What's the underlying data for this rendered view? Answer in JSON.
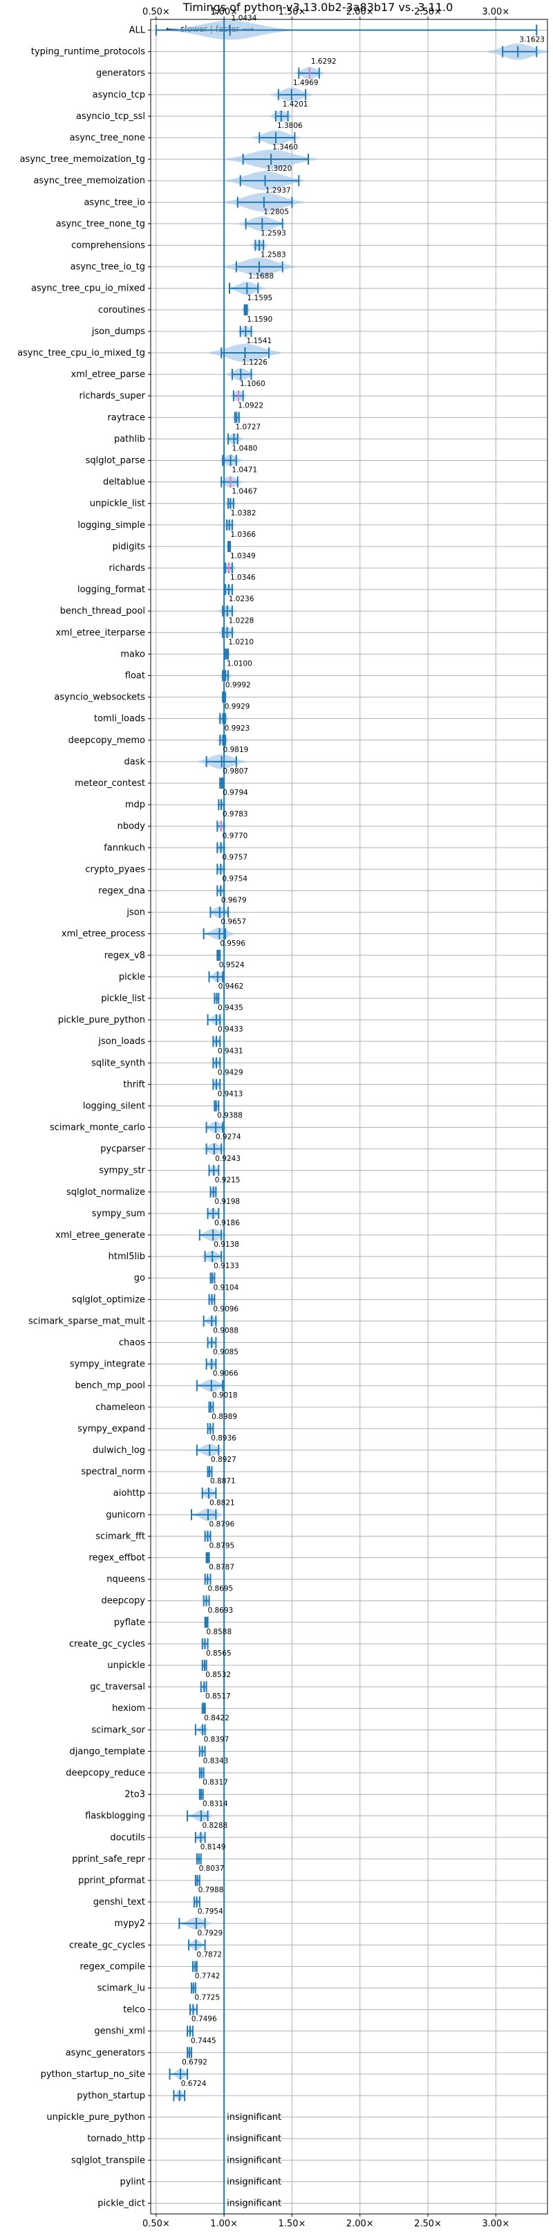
{
  "chart_data": {
    "type": "violin",
    "title": "Timings of python-v3.13.0b2-3a83b17 vs. 3.11.0",
    "direction_note": "⟵ slower | faster ⟶",
    "x_ticks": [
      "0.50×",
      "1.00×",
      "1.50×",
      "2.00×",
      "2.50×",
      "3.00×"
    ],
    "x_tick_values": [
      0.5,
      1.0,
      1.5,
      2.0,
      2.5,
      3.0
    ],
    "xlim": [
      0.46,
      3.38
    ],
    "grid": true,
    "reference_line": 1.0,
    "benchmarks": [
      {
        "name": "ALL",
        "value": "1.0434",
        "center": 1.0434,
        "low": 0.5,
        "high": 3.3,
        "spread": 0.2
      },
      {
        "name": "typing_runtime_protocols",
        "value": "3.1623",
        "center": 3.1623,
        "low": 3.05,
        "high": 3.3,
        "spread": 0.1
      },
      {
        "name": "generators",
        "value": "1.6292",
        "center": 1.6292,
        "low": 1.55,
        "high": 1.7,
        "spread": 0.05,
        "median_mark": true
      },
      {
        "name": "asyncio_tcp",
        "value": "1.4969",
        "center": 1.4969,
        "low": 1.4,
        "high": 1.6,
        "spread": 0.07
      },
      {
        "name": "asyncio_tcp_ssl",
        "value": "1.4201",
        "center": 1.4201,
        "low": 1.38,
        "high": 1.47,
        "spread": 0.04
      },
      {
        "name": "async_tree_none",
        "value": "1.3806",
        "center": 1.3806,
        "low": 1.26,
        "high": 1.52,
        "spread": 0.08
      },
      {
        "name": "async_tree_memoization_tg",
        "value": "1.3460",
        "center": 1.346,
        "low": 1.14,
        "high": 1.62,
        "spread": 0.15
      },
      {
        "name": "async_tree_memoization",
        "value": "1.3020",
        "center": 1.302,
        "low": 1.12,
        "high": 1.55,
        "spread": 0.13
      },
      {
        "name": "async_tree_io",
        "value": "1.2937",
        "center": 1.2937,
        "low": 1.1,
        "high": 1.5,
        "spread": 0.13
      },
      {
        "name": "async_tree_none_tg",
        "value": "1.2805",
        "center": 1.2805,
        "low": 1.16,
        "high": 1.43,
        "spread": 0.08
      },
      {
        "name": "comprehensions",
        "value": "1.2593",
        "center": 1.2593,
        "low": 1.23,
        "high": 1.29,
        "spread": 0.03
      },
      {
        "name": "async_tree_io_tg",
        "value": "1.2583",
        "center": 1.2583,
        "low": 1.09,
        "high": 1.43,
        "spread": 0.12
      },
      {
        "name": "async_tree_cpu_io_mixed",
        "value": "1.1688",
        "center": 1.1688,
        "low": 1.04,
        "high": 1.25,
        "spread": 0.06
      },
      {
        "name": "coroutines",
        "value": "1.1595",
        "center": 1.1595,
        "low": 1.15,
        "high": 1.17,
        "spread": 0.015
      },
      {
        "name": "json_dumps",
        "value": "1.1590",
        "center": 1.159,
        "low": 1.12,
        "high": 1.2,
        "spread": 0.03
      },
      {
        "name": "async_tree_cpu_io_mixed_tg",
        "value": "1.1541",
        "center": 1.1541,
        "low": 0.98,
        "high": 1.33,
        "spread": 0.12
      },
      {
        "name": "xml_etree_parse",
        "value": "1.1226",
        "center": 1.1226,
        "low": 1.06,
        "high": 1.2,
        "spread": 0.05
      },
      {
        "name": "richards_super",
        "value": "1.1060",
        "center": 1.106,
        "low": 1.07,
        "high": 1.14,
        "spread": 0.03,
        "median_mark": true
      },
      {
        "name": "raytrace",
        "value": "1.0922",
        "center": 1.0922,
        "low": 1.08,
        "high": 1.11,
        "spread": 0.015
      },
      {
        "name": "pathlib",
        "value": "1.0727",
        "center": 1.0727,
        "low": 1.03,
        "high": 1.1,
        "spread": 0.03
      },
      {
        "name": "sqlglot_parse",
        "value": "1.0480",
        "center": 1.048,
        "low": 0.99,
        "high": 1.09,
        "spread": 0.04
      },
      {
        "name": "deltablue",
        "value": "1.0471",
        "center": 1.0471,
        "low": 0.98,
        "high": 1.1,
        "spread": 0.04,
        "median_mark": true
      },
      {
        "name": "unpickle_list",
        "value": "1.0467",
        "center": 1.0467,
        "low": 1.03,
        "high": 1.07,
        "spread": 0.02
      },
      {
        "name": "logging_simple",
        "value": "1.0382",
        "center": 1.0382,
        "low": 1.02,
        "high": 1.06,
        "spread": 0.02
      },
      {
        "name": "pidigits",
        "value": "1.0366",
        "center": 1.0366,
        "low": 1.03,
        "high": 1.045,
        "spread": 0.01
      },
      {
        "name": "richards",
        "value": "1.0349",
        "center": 1.0349,
        "low": 1.01,
        "high": 1.06,
        "spread": 0.025,
        "median_mark": true
      },
      {
        "name": "logging_format",
        "value": "1.0346",
        "center": 1.0346,
        "low": 1.01,
        "high": 1.06,
        "spread": 0.02
      },
      {
        "name": "bench_thread_pool",
        "value": "1.0236",
        "center": 1.0236,
        "low": 0.99,
        "high": 1.06,
        "spread": 0.03
      },
      {
        "name": "xml_etree_iterparse",
        "value": "1.0228",
        "center": 1.0228,
        "low": 0.99,
        "high": 1.06,
        "spread": 0.03
      },
      {
        "name": "mako",
        "value": "1.0210",
        "center": 1.021,
        "low": 1.01,
        "high": 1.03,
        "spread": 0.012
      },
      {
        "name": "float",
        "value": "1.0100",
        "center": 1.01,
        "low": 0.99,
        "high": 1.03,
        "spread": 0.02
      },
      {
        "name": "asyncio_websockets",
        "value": "0.9992",
        "center": 0.9992,
        "low": 0.99,
        "high": 1.01,
        "spread": 0.01
      },
      {
        "name": "tomli_loads",
        "value": "0.9929",
        "center": 0.9929,
        "low": 0.97,
        "high": 1.01,
        "spread": 0.02
      },
      {
        "name": "deepcopy_memo",
        "value": "0.9923",
        "center": 0.9923,
        "low": 0.97,
        "high": 1.01,
        "spread": 0.02
      },
      {
        "name": "dask",
        "value": "0.9819",
        "center": 0.9819,
        "low": 0.87,
        "high": 1.09,
        "spread": 0.08
      },
      {
        "name": "meteor_contest",
        "value": "0.9807",
        "center": 0.9807,
        "low": 0.97,
        "high": 0.99,
        "spread": 0.01
      },
      {
        "name": "mdp",
        "value": "0.9794",
        "center": 0.9794,
        "low": 0.96,
        "high": 1.0,
        "spread": 0.015
      },
      {
        "name": "nbody",
        "value": "0.9783",
        "center": 0.9783,
        "low": 0.95,
        "high": 1.0,
        "spread": 0.02,
        "median_mark": true
      },
      {
        "name": "fannkuch",
        "value": "0.9770",
        "center": 0.977,
        "low": 0.95,
        "high": 1.0,
        "spread": 0.02
      },
      {
        "name": "crypto_pyaes",
        "value": "0.9757",
        "center": 0.9757,
        "low": 0.95,
        "high": 1.0,
        "spread": 0.02
      },
      {
        "name": "regex_dna",
        "value": "0.9754",
        "center": 0.9754,
        "low": 0.95,
        "high": 1.0,
        "spread": 0.015
      },
      {
        "name": "json",
        "value": "0.9679",
        "center": 0.9679,
        "low": 0.9,
        "high": 1.03,
        "spread": 0.04
      },
      {
        "name": "xml_etree_process",
        "value": "0.9657",
        "center": 0.9657,
        "low": 0.85,
        "high": 1.01,
        "spread": 0.05
      },
      {
        "name": "regex_v8",
        "value": "0.9596",
        "center": 0.9596,
        "low": 0.95,
        "high": 0.97,
        "spread": 0.01
      },
      {
        "name": "pickle",
        "value": "0.9524",
        "center": 0.9524,
        "low": 0.89,
        "high": 0.99,
        "spread": 0.03
      },
      {
        "name": "pickle_list",
        "value": "0.9462",
        "center": 0.9462,
        "low": 0.93,
        "high": 0.96,
        "spread": 0.012
      },
      {
        "name": "pickle_pure_python",
        "value": "0.9435",
        "center": 0.9435,
        "low": 0.88,
        "high": 0.97,
        "spread": 0.03
      },
      {
        "name": "json_loads",
        "value": "0.9433",
        "center": 0.9433,
        "low": 0.92,
        "high": 0.97,
        "spread": 0.015
      },
      {
        "name": "sqlite_synth",
        "value": "0.9431",
        "center": 0.9431,
        "low": 0.92,
        "high": 0.97,
        "spread": 0.015
      },
      {
        "name": "thrift",
        "value": "0.9429",
        "center": 0.9429,
        "low": 0.92,
        "high": 0.97,
        "spread": 0.015
      },
      {
        "name": "logging_silent",
        "value": "0.9413",
        "center": 0.9413,
        "low": 0.93,
        "high": 0.96,
        "spread": 0.012
      },
      {
        "name": "scimark_monte_carlo",
        "value": "0.9388",
        "center": 0.9388,
        "low": 0.87,
        "high": 0.99,
        "spread": 0.04
      },
      {
        "name": "pycparser",
        "value": "0.9274",
        "center": 0.9274,
        "low": 0.87,
        "high": 0.98,
        "spread": 0.04
      },
      {
        "name": "sympy_str",
        "value": "0.9243",
        "center": 0.9243,
        "low": 0.89,
        "high": 0.96,
        "spread": 0.02
      },
      {
        "name": "sqlglot_normalize",
        "value": "0.9215",
        "center": 0.9215,
        "low": 0.9,
        "high": 0.94,
        "spread": 0.015
      },
      {
        "name": "sympy_sum",
        "value": "0.9198",
        "center": 0.9198,
        "low": 0.88,
        "high": 0.96,
        "spread": 0.025
      },
      {
        "name": "xml_etree_generate",
        "value": "0.9186",
        "center": 0.9186,
        "low": 0.82,
        "high": 0.98,
        "spread": 0.05
      },
      {
        "name": "html5lib",
        "value": "0.9138",
        "center": 0.9138,
        "low": 0.86,
        "high": 0.98,
        "spread": 0.04
      },
      {
        "name": "go",
        "value": "0.9133",
        "center": 0.9133,
        "low": 0.9,
        "high": 0.93,
        "spread": 0.012
      },
      {
        "name": "sqlglot_optimize",
        "value": "0.9104",
        "center": 0.9104,
        "low": 0.89,
        "high": 0.93,
        "spread": 0.012
      },
      {
        "name": "scimark_sparse_mat_mult",
        "value": "0.9096",
        "center": 0.9096,
        "low": 0.85,
        "high": 0.94,
        "spread": 0.025
      },
      {
        "name": "chaos",
        "value": "0.9088",
        "center": 0.9088,
        "low": 0.88,
        "high": 0.94,
        "spread": 0.015
      },
      {
        "name": "sympy_integrate",
        "value": "0.9085",
        "center": 0.9085,
        "low": 0.87,
        "high": 0.94,
        "spread": 0.02
      },
      {
        "name": "bench_mp_pool",
        "value": "0.9066",
        "center": 0.9066,
        "low": 0.8,
        "high": 0.99,
        "spread": 0.05
      },
      {
        "name": "chameleon",
        "value": "0.9018",
        "center": 0.9018,
        "low": 0.89,
        "high": 0.92,
        "spread": 0.01
      },
      {
        "name": "sympy_expand",
        "value": "0.8989",
        "center": 0.8989,
        "low": 0.88,
        "high": 0.92,
        "spread": 0.012
      },
      {
        "name": "dulwich_log",
        "value": "0.8936",
        "center": 0.8936,
        "low": 0.8,
        "high": 0.96,
        "spread": 0.05
      },
      {
        "name": "spectral_norm",
        "value": "0.8927",
        "center": 0.8927,
        "low": 0.88,
        "high": 0.91,
        "spread": 0.01
      },
      {
        "name": "aiohttp",
        "value": "0.8871",
        "center": 0.8871,
        "low": 0.84,
        "high": 0.94,
        "spread": 0.03
      },
      {
        "name": "gunicorn",
        "value": "0.8821",
        "center": 0.8821,
        "low": 0.76,
        "high": 0.94,
        "spread": 0.05
      },
      {
        "name": "scimark_fft",
        "value": "0.8796",
        "center": 0.8796,
        "low": 0.86,
        "high": 0.9,
        "spread": 0.012
      },
      {
        "name": "regex_effbot",
        "value": "0.8795",
        "center": 0.8795,
        "low": 0.87,
        "high": 0.89,
        "spread": 0.008
      },
      {
        "name": "nqueens",
        "value": "0.8787",
        "center": 0.8787,
        "low": 0.86,
        "high": 0.9,
        "spread": 0.01
      },
      {
        "name": "deepcopy",
        "value": "0.8695",
        "center": 0.8695,
        "low": 0.85,
        "high": 0.89,
        "spread": 0.01
      },
      {
        "name": "pyflate",
        "value": "0.8693",
        "center": 0.8693,
        "low": 0.86,
        "high": 0.88,
        "spread": 0.008
      },
      {
        "name": "create_gc_cycles",
        "value": "0.8588",
        "center": 0.8588,
        "low": 0.84,
        "high": 0.88,
        "spread": 0.01
      },
      {
        "name": "unpickle",
        "value": "0.8565",
        "center": 0.8565,
        "low": 0.84,
        "high": 0.87,
        "spread": 0.01
      },
      {
        "name": "gc_traversal",
        "value": "0.8532",
        "center": 0.8532,
        "low": 0.83,
        "high": 0.87,
        "spread": 0.01
      },
      {
        "name": "hexiom",
        "value": "0.8517",
        "center": 0.8517,
        "low": 0.84,
        "high": 0.86,
        "spread": 0.008
      },
      {
        "name": "scimark_sor",
        "value": "0.8422",
        "center": 0.8422,
        "low": 0.79,
        "high": 0.86,
        "spread": 0.02
      },
      {
        "name": "django_template",
        "value": "0.8397",
        "center": 0.8397,
        "low": 0.82,
        "high": 0.86,
        "spread": 0.01
      },
      {
        "name": "deepcopy_reduce",
        "value": "0.8343",
        "center": 0.8343,
        "low": 0.82,
        "high": 0.85,
        "spread": 0.01
      },
      {
        "name": "2to3",
        "value": "0.8317",
        "center": 0.8317,
        "low": 0.82,
        "high": 0.845,
        "spread": 0.008
      },
      {
        "name": "flaskblogging",
        "value": "0.8314",
        "center": 0.8314,
        "low": 0.73,
        "high": 0.88,
        "spread": 0.04
      },
      {
        "name": "docutils",
        "value": "0.8288",
        "center": 0.8288,
        "low": 0.79,
        "high": 0.86,
        "spread": 0.02
      },
      {
        "name": "pprint_safe_repr",
        "value": "0.8149",
        "center": 0.8149,
        "low": 0.8,
        "high": 0.83,
        "spread": 0.01
      },
      {
        "name": "pprint_pformat",
        "value": "0.8037",
        "center": 0.8037,
        "low": 0.79,
        "high": 0.82,
        "spread": 0.01
      },
      {
        "name": "genshi_text",
        "value": "0.7988",
        "center": 0.7988,
        "low": 0.78,
        "high": 0.82,
        "spread": 0.01
      },
      {
        "name": "mypy2",
        "value": "0.7954",
        "center": 0.7954,
        "low": 0.67,
        "high": 0.86,
        "spread": 0.05
      },
      {
        "name": "create_gc_cycles",
        "value": "0.7929",
        "center": 0.7929,
        "low": 0.74,
        "high": 0.86,
        "spread": 0.03
      },
      {
        "name": "regex_compile",
        "value": "0.7872",
        "center": 0.7872,
        "low": 0.77,
        "high": 0.8,
        "spread": 0.01
      },
      {
        "name": "scimark_lu",
        "value": "0.7742",
        "center": 0.7742,
        "low": 0.76,
        "high": 0.79,
        "spread": 0.01
      },
      {
        "name": "telco",
        "value": "0.7725",
        "center": 0.7725,
        "low": 0.75,
        "high": 0.8,
        "spread": 0.01
      },
      {
        "name": "genshi_xml",
        "value": "0.7496",
        "center": 0.7496,
        "low": 0.73,
        "high": 0.77,
        "spread": 0.01
      },
      {
        "name": "async_generators",
        "value": "0.7445",
        "center": 0.7445,
        "low": 0.73,
        "high": 0.76,
        "spread": 0.01
      },
      {
        "name": "python_startup_no_site",
        "value": "0.6792",
        "center": 0.6792,
        "low": 0.6,
        "high": 0.73,
        "spread": 0.03
      },
      {
        "name": "python_startup",
        "value": "0.6724",
        "center": 0.6724,
        "low": 0.63,
        "high": 0.71,
        "spread": 0.02
      },
      {
        "name": "unpickle_pure_python",
        "value": "insignificant",
        "center": null
      },
      {
        "name": "tornado_http",
        "value": "insignificant",
        "center": null
      },
      {
        "name": "sqlglot_transpile",
        "value": "insignificant",
        "center": null
      },
      {
        "name": "pylint",
        "value": "insignificant",
        "center": null
      },
      {
        "name": "pickle_dict",
        "value": "insignificant",
        "center": null
      }
    ]
  },
  "colors": {
    "violin": "#9ec4e6",
    "whisker": "#1f77b4",
    "median": "#e377c2",
    "grid": "#b0b0b0"
  }
}
